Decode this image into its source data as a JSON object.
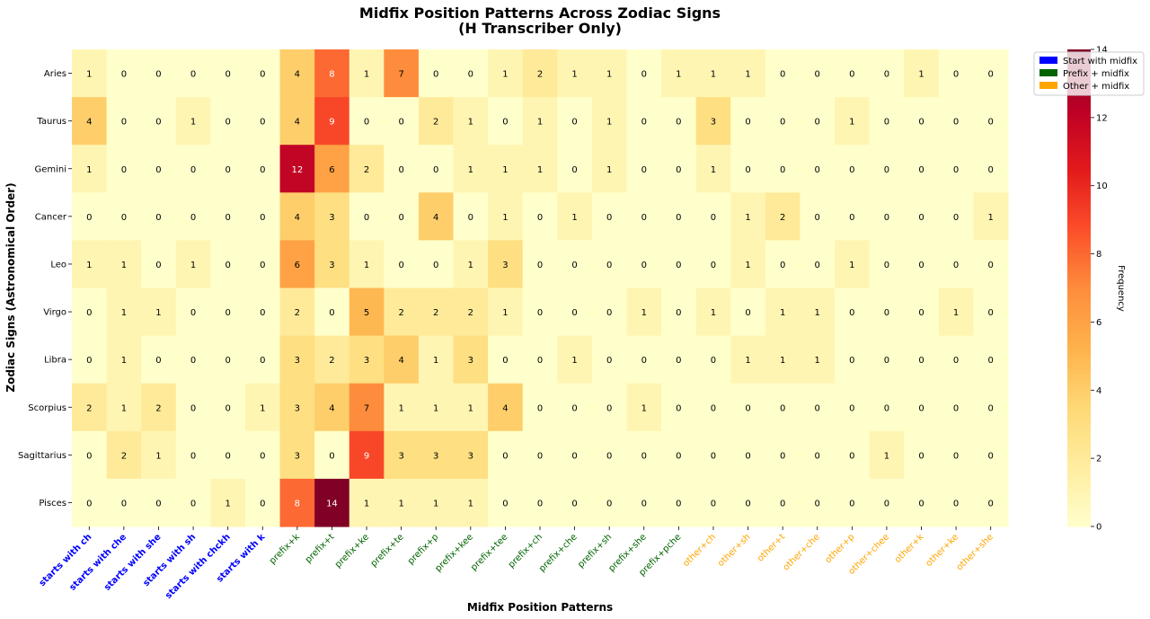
{
  "chart_data": {
    "type": "heatmap",
    "title_line1": "Midfix Position Patterns Across Zodiac Signs",
    "title_line2": "(H Transcriber Only)",
    "xlabel": "Midfix Position Patterns",
    "ylabel": "Zodiac Signs (Astronomical Order)",
    "colorbar_label": "Frequency",
    "value_range": [
      0,
      14
    ],
    "colorbar_ticks": [
      0,
      2,
      4,
      6,
      8,
      10,
      12,
      14
    ],
    "colormap": "YlOrRd",
    "rows": [
      "Aries",
      "Taurus",
      "Gemini",
      "Cancer",
      "Leo",
      "Virgo",
      "Libra",
      "Scorpius",
      "Sagittarius",
      "Pisces"
    ],
    "columns": [
      "starts with ch",
      "starts with che",
      "starts with she",
      "starts with sh",
      "starts with chckh",
      "starts with k",
      "prefix+k",
      "prefix+t",
      "prefix+ke",
      "prefix+te",
      "prefix+p",
      "prefix+kee",
      "prefix+tee",
      "prefix+ch",
      "prefix+che",
      "prefix+sh",
      "prefix+she",
      "prefix+pche",
      "other+ch",
      "other+sh",
      "other+t",
      "other+che",
      "other+p",
      "other+chee",
      "other+k",
      "other+ke",
      "other+she"
    ],
    "column_groups": [
      "start",
      "start",
      "start",
      "start",
      "start",
      "start",
      "prefix",
      "prefix",
      "prefix",
      "prefix",
      "prefix",
      "prefix",
      "prefix",
      "prefix",
      "prefix",
      "prefix",
      "prefix",
      "prefix",
      "other",
      "other",
      "other",
      "other",
      "other",
      "other",
      "other",
      "other",
      "other"
    ],
    "group_colors": {
      "start": "#0000ff",
      "prefix": "#006400",
      "other": "#ffa500"
    },
    "values": [
      [
        1,
        0,
        0,
        0,
        0,
        0,
        4,
        8,
        1,
        7,
        0,
        0,
        1,
        2,
        1,
        1,
        0,
        1,
        1,
        1,
        0,
        0,
        0,
        0,
        1,
        0,
        0
      ],
      [
        4,
        0,
        0,
        1,
        0,
        0,
        4,
        9,
        0,
        0,
        2,
        1,
        0,
        1,
        0,
        1,
        0,
        0,
        3,
        0,
        0,
        0,
        1,
        0,
        0,
        0,
        0
      ],
      [
        1,
        0,
        0,
        0,
        0,
        0,
        12,
        6,
        2,
        0,
        0,
        1,
        1,
        1,
        0,
        1,
        0,
        0,
        1,
        0,
        0,
        0,
        0,
        0,
        0,
        0,
        0
      ],
      [
        0,
        0,
        0,
        0,
        0,
        0,
        4,
        3,
        0,
        0,
        4,
        0,
        1,
        0,
        1,
        0,
        0,
        0,
        0,
        1,
        2,
        0,
        0,
        0,
        0,
        0,
        1
      ],
      [
        1,
        1,
        0,
        1,
        0,
        0,
        6,
        3,
        1,
        0,
        0,
        1,
        3,
        0,
        0,
        0,
        0,
        0,
        0,
        1,
        0,
        0,
        1,
        0,
        0,
        0,
        0
      ],
      [
        0,
        1,
        1,
        0,
        0,
        0,
        2,
        0,
        5,
        2,
        2,
        2,
        1,
        0,
        0,
        0,
        1,
        0,
        1,
        0,
        1,
        1,
        0,
        0,
        0,
        1,
        0
      ],
      [
        0,
        1,
        0,
        0,
        0,
        0,
        3,
        2,
        3,
        4,
        1,
        3,
        0,
        0,
        1,
        0,
        0,
        0,
        0,
        1,
        1,
        1,
        0,
        0,
        0,
        0,
        0
      ],
      [
        2,
        1,
        2,
        0,
        0,
        1,
        3,
        4,
        7,
        1,
        1,
        1,
        4,
        0,
        0,
        0,
        1,
        0,
        0,
        0,
        0,
        0,
        0,
        0,
        0,
        0,
        0
      ],
      [
        0,
        2,
        1,
        0,
        0,
        0,
        3,
        0,
        9,
        3,
        3,
        3,
        0,
        0,
        0,
        0,
        0,
        0,
        0,
        0,
        0,
        0,
        0,
        1,
        0,
        0,
        0
      ],
      [
        0,
        0,
        0,
        0,
        1,
        0,
        8,
        14,
        1,
        1,
        1,
        1,
        0,
        0,
        0,
        0,
        0,
        0,
        0,
        0,
        0,
        0,
        0,
        0,
        0,
        0,
        0
      ]
    ],
    "legend": {
      "placement": "top-right",
      "entries": [
        {
          "label": "Start with midfix",
          "color": "#0000ff"
        },
        {
          "label": "Prefix + midfix",
          "color": "#006400"
        },
        {
          "label": "Other + midfix",
          "color": "#ffa500"
        }
      ]
    }
  }
}
